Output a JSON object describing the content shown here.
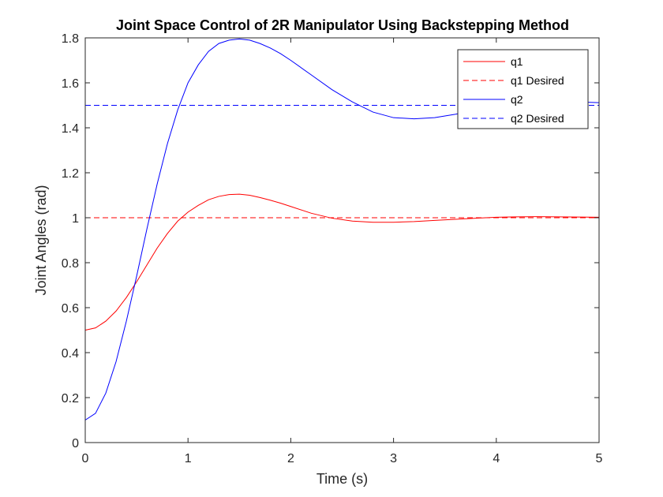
{
  "chart_data": {
    "type": "line",
    "title": "Joint Space Control of 2R Manipulator Using Backstepping Method",
    "xlabel": "Time (s)",
    "ylabel": "Joint Angles (rad)",
    "xlim": [
      0,
      5
    ],
    "ylim": [
      0,
      1.8
    ],
    "x_ticks": [
      0,
      1,
      2,
      3,
      4,
      5
    ],
    "x_tick_labels": [
      "0",
      "1",
      "2",
      "3",
      "4",
      "5"
    ],
    "y_ticks": [
      0,
      0.2,
      0.4,
      0.6,
      0.8,
      1,
      1.2,
      1.4,
      1.6,
      1.8
    ],
    "y_tick_labels": [
      "0",
      "0.2",
      "0.4",
      "0.6",
      "0.8",
      "1",
      "1.2",
      "1.4",
      "1.6",
      "1.8"
    ],
    "grid": false,
    "legend_position": "top-right",
    "series": [
      {
        "name": "q1",
        "color": "#ff0000",
        "dash": "solid",
        "x": [
          0,
          0.1,
          0.2,
          0.3,
          0.4,
          0.5,
          0.6,
          0.7,
          0.8,
          0.9,
          1.0,
          1.1,
          1.2,
          1.3,
          1.4,
          1.5,
          1.6,
          1.7,
          1.8,
          1.9,
          2.0,
          2.2,
          2.4,
          2.6,
          2.8,
          3.0,
          3.2,
          3.4,
          3.6,
          3.8,
          4.0,
          4.2,
          4.4,
          4.6,
          4.8,
          5.0
        ],
        "y": [
          0.5,
          0.51,
          0.54,
          0.585,
          0.645,
          0.715,
          0.79,
          0.865,
          0.93,
          0.985,
          1.025,
          1.055,
          1.08,
          1.095,
          1.103,
          1.105,
          1.1,
          1.09,
          1.078,
          1.065,
          1.05,
          1.02,
          0.998,
          0.985,
          0.98,
          0.98,
          0.983,
          0.988,
          0.993,
          0.998,
          1.002,
          1.004,
          1.005,
          1.004,
          1.003,
          1.002
        ]
      },
      {
        "name": "q1 Desired",
        "color": "#ff0000",
        "dash": "dashed",
        "x": [
          0,
          5
        ],
        "y": [
          1,
          1
        ]
      },
      {
        "name": "q2",
        "color": "#0000ff",
        "dash": "solid",
        "x": [
          0,
          0.1,
          0.2,
          0.3,
          0.4,
          0.5,
          0.6,
          0.7,
          0.8,
          0.9,
          1.0,
          1.1,
          1.2,
          1.3,
          1.4,
          1.5,
          1.6,
          1.7,
          1.8,
          1.9,
          2.0,
          2.2,
          2.4,
          2.6,
          2.8,
          3.0,
          3.2,
          3.4,
          3.6,
          3.8,
          4.0,
          4.2,
          4.4,
          4.6,
          4.8,
          5.0
        ],
        "y": [
          0.1,
          0.13,
          0.22,
          0.36,
          0.54,
          0.74,
          0.95,
          1.15,
          1.33,
          1.48,
          1.6,
          1.68,
          1.74,
          1.775,
          1.79,
          1.795,
          1.79,
          1.775,
          1.755,
          1.73,
          1.7,
          1.635,
          1.57,
          1.515,
          1.47,
          1.445,
          1.44,
          1.445,
          1.46,
          1.478,
          1.495,
          1.508,
          1.515,
          1.517,
          1.515,
          1.512
        ]
      },
      {
        "name": "q2 Desired",
        "color": "#0000ff",
        "dash": "dashed",
        "x": [
          0,
          5
        ],
        "y": [
          1.5,
          1.5
        ]
      }
    ]
  }
}
